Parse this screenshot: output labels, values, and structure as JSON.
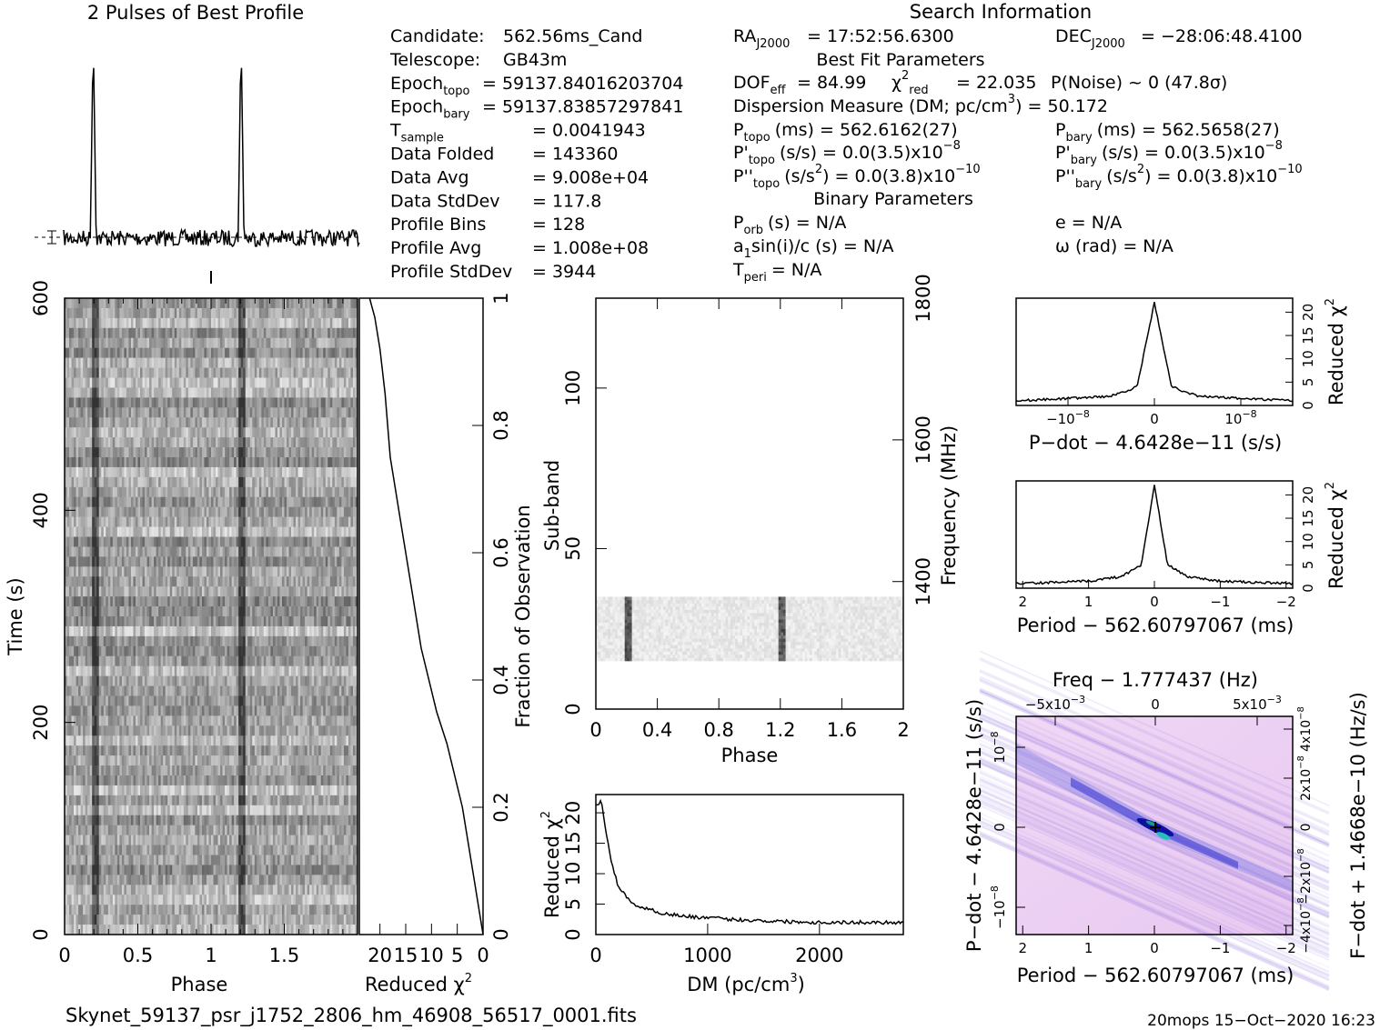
{
  "header": {
    "profile_title": "2 Pulses of Best Profile",
    "search_title": "Search Information",
    "best_fit_title": "Best Fit Parameters",
    "binary_title": "Binary Parameters"
  },
  "candidate_info": [
    {
      "label": "Candidate:",
      "value": "562.56ms_Cand"
    },
    {
      "label": "Telescope:",
      "value": "GB43m"
    },
    {
      "label": "Epoch",
      "sub": "topo",
      "value": "= 59137.84016203704"
    },
    {
      "label": "Epoch",
      "sub": "bary",
      "value": "= 59137.83857297841"
    },
    {
      "label": "T",
      "sub": "sample",
      "value": "= 0.0041943"
    },
    {
      "label": "Data Folded",
      "value": "= 143360"
    },
    {
      "label": "Data Avg",
      "value": "= 9.008e+04"
    },
    {
      "label": "Data StdDev",
      "value": "= 117.8"
    },
    {
      "label": "Profile Bins",
      "value": "= 128"
    },
    {
      "label": "Profile Avg",
      "value": "= 1.008e+08"
    },
    {
      "label": "Profile StdDev",
      "value": "= 3944"
    }
  ],
  "search_info": {
    "ra": "= 17:52:56.6300",
    "ra_label": "RA",
    "ra_sub": "J2000",
    "dec": "= −28:06:48.4100",
    "dec_label": "DEC",
    "dec_sub": "J2000",
    "dof": "= 84.99",
    "dof_label": "DOF",
    "dof_sub": "eff",
    "chi2": "= 22.035",
    "chi_label": "χ",
    "chi_sub": "red",
    "chi_sup": "2",
    "pnoise": "P(Noise) ~ 0   (47.8σ)",
    "dm": "Dispersion Measure (DM; pc/cm",
    "dm_sup": "3",
    "dm_value": ") = 50.172",
    "ptopo": "(ms) =  562.6162(27)",
    "pbary": "(ms) =  562.5658(27)",
    "pdtopo": "(s/s) = 0.0(3.5)x10",
    "pdbary": "(s/s) = 0.0(3.5)x10",
    "pd_exp": "−8",
    "pddtopo": "(s/s",
    "pddtopo_b": ") = 0.0(3.8)x10",
    "pddbary": "(s/s",
    "pddbary_b": ") = 0.0(3.8)x10",
    "pdd_exp": "−10",
    "porb": "(s) = N/A",
    "asini": "sin(i)/c (s) = N/A",
    "tperi": "= N/A",
    "ecc": "e = N/A",
    "omega": "ω (rad) = N/A",
    "P": "P",
    "sub_topo": "topo",
    "sub_bary": "bary",
    "sub_orb": "orb",
    "a": "a",
    "sub_1": "1",
    "T": "T",
    "sub_peri": "peri",
    "sq2": "2"
  },
  "footer": {
    "filename": "Skynet_59137_psr_j1752_2806_hm_46908_56517_0001.fits",
    "stamp": "20mops 15−Oct−2020 16:23"
  },
  "chart_data": [
    {
      "type": "line",
      "title": "2 Pulses of Best Profile",
      "x_range": [
        0,
        2
      ],
      "peaks_at_phase": [
        0.2,
        1.2
      ],
      "note_values": {
        "baseline": 0.0,
        "peak": 1.0
      }
    },
    {
      "type": "heatmap",
      "xlabel": "Phase",
      "ylabel": "Time (s)",
      "xlim": [
        0,
        2
      ],
      "ylim": [
        0,
        600
      ],
      "x_ticks": [
        "0",
        "0.5",
        "1",
        "1.5"
      ],
      "y_ticks": [
        "0",
        "200",
        "400",
        "600"
      ]
    },
    {
      "type": "line",
      "xlabel": "Reduced χ",
      "xlabel_sup": "2",
      "ylabel": "Fraction of Observation",
      "x_ticks": [
        "20",
        "15",
        "10",
        "5",
        "0"
      ],
      "y_ticks": [
        "0",
        "0.2",
        "0.4",
        "0.6",
        "0.8",
        "1"
      ],
      "x": [
        0,
        2,
        4,
        7,
        9,
        12,
        14,
        16,
        18,
        19,
        20,
        21,
        22
      ],
      "y": [
        0,
        0.1,
        0.2,
        0.3,
        0.35,
        0.45,
        0.55,
        0.65,
        0.75,
        0.85,
        0.92,
        0.97,
        1.0
      ]
    },
    {
      "type": "heatmap",
      "xlabel": "Phase",
      "ylabel": "Sub-band",
      "y2label": "Frequency (MHz)",
      "xlim": [
        0,
        2
      ],
      "ylim": [
        0,
        128
      ],
      "x_ticks": [
        "0",
        "0.4",
        "0.8",
        "1.2",
        "1.6",
        "2"
      ],
      "y_ticks": [
        "0",
        "50",
        "100"
      ],
      "y2_ticks": [
        "1400",
        "1600",
        "1800"
      ],
      "active_subbands": [
        15,
        35
      ]
    },
    {
      "type": "line",
      "xlabel": "DM (pc/cm",
      "xlabel_sup": "3",
      "xlabel_end": ")",
      "ylabel": "Reduced χ",
      "ylabel_sup": "2",
      "x_ticks": [
        "0",
        "1000",
        "2000"
      ],
      "y_ticks": [
        "0",
        "5",
        "10",
        "15",
        "20"
      ],
      "x": [
        0,
        50,
        100,
        150,
        200,
        300,
        400,
        600,
        800,
        1200,
        1600,
        2000,
        2400,
        2750
      ],
      "y": [
        21,
        22,
        16,
        11,
        8,
        5.5,
        4.5,
        3.5,
        3,
        2.5,
        2.2,
        2,
        2,
        2
      ]
    },
    {
      "type": "line",
      "xlabel": "P−dot − 4.6428e−11 (s/s)",
      "ylabel": "Reduced χ",
      "ylabel_sup": "2",
      "x_ticks": [
        "10",
        "0",
        "−10"
      ],
      "x_tick_exp": [
        "−8",
        "",
        "−8"
      ],
      "y_ticks": [
        "0",
        "5",
        "10",
        "15",
        "20"
      ],
      "x": [
        -1.6e-08,
        -1e-08,
        -5e-09,
        -2e-09,
        0,
        2e-09,
        5e-09,
        1e-08,
        1.6e-08
      ],
      "y": [
        1,
        1.5,
        2,
        4,
        22,
        4,
        2,
        1.5,
        1
      ]
    },
    {
      "type": "line",
      "xlabel": "Period − 562.60797067 (ms)",
      "ylabel": "Reduced χ",
      "ylabel_sup": "2",
      "x_ticks": [
        "2",
        "1",
        "0",
        "−1",
        "−2"
      ],
      "y_ticks": [
        "0",
        "5",
        "10",
        "15",
        "20"
      ],
      "x": [
        2,
        1,
        0.5,
        0.2,
        0,
        -0.2,
        -0.5,
        -1,
        -2
      ],
      "y": [
        1,
        1.5,
        2.5,
        5,
        22,
        5,
        2.5,
        1.5,
        1
      ]
    },
    {
      "type": "heatmap",
      "title": "Freq − 1.777437 (Hz)",
      "xlabel": "Period − 562.60797067 (ms)",
      "ylabel": "P−dot − 4.6428e−11 (s/s)",
      "y2label": "F−dot + 1.4668e−10 (Hz/s)",
      "x_ticks": [
        "2",
        "1",
        "0",
        "−1",
        "−2"
      ],
      "top_ticks": [
        "−5x10",
        "0",
        "5x10"
      ],
      "top_exp": "−3",
      "y_ticks": [
        "10",
        "0",
        "−10"
      ],
      "y_exp": "−8",
      "y2_ticks": [
        "−4x10",
        "−2x10",
        "0",
        "2x10",
        "4x10"
      ],
      "y2_exp": "−8"
    }
  ]
}
